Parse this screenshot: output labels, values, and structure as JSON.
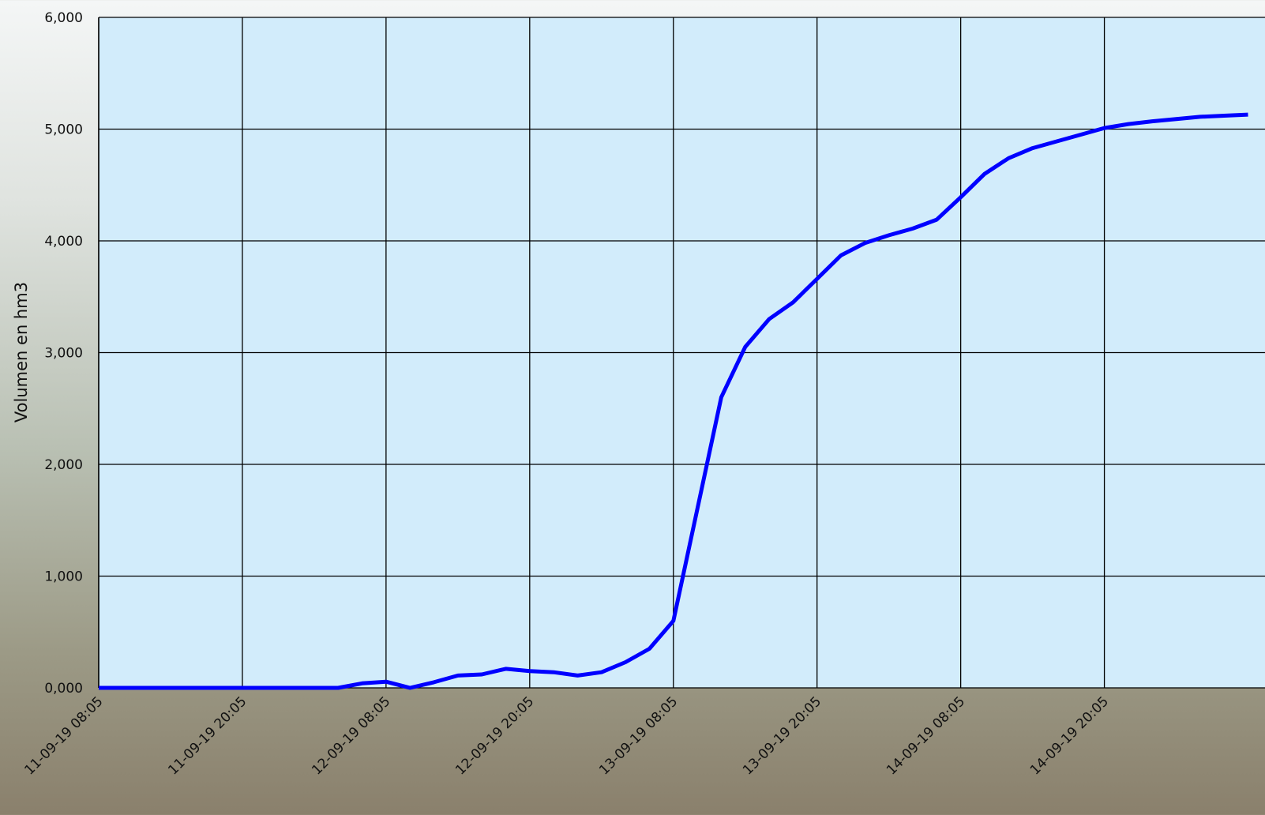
{
  "chart_data": {
    "type": "line",
    "y_label": "Volumen en hm3",
    "x": [
      "2019-09-11T08:05",
      "2019-09-11T10:05",
      "2019-09-11T12:05",
      "2019-09-11T14:05",
      "2019-09-11T16:05",
      "2019-09-11T18:05",
      "2019-09-11T20:05",
      "2019-09-11T22:05",
      "2019-09-12T00:05",
      "2019-09-12T02:05",
      "2019-09-12T04:05",
      "2019-09-12T06:05",
      "2019-09-12T08:05",
      "2019-09-12T10:05",
      "2019-09-12T12:05",
      "2019-09-12T14:05",
      "2019-09-12T16:05",
      "2019-09-12T18:05",
      "2019-09-12T20:05",
      "2019-09-12T22:05",
      "2019-09-13T00:05",
      "2019-09-13T02:05",
      "2019-09-13T04:05",
      "2019-09-13T06:05",
      "2019-09-13T08:05",
      "2019-09-13T10:05",
      "2019-09-13T12:05",
      "2019-09-13T14:05",
      "2019-09-13T16:05",
      "2019-09-13T18:05",
      "2019-09-13T20:05",
      "2019-09-13T22:05",
      "2019-09-14T00:05",
      "2019-09-14T02:05",
      "2019-09-14T04:05",
      "2019-09-14T06:05",
      "2019-09-14T08:05",
      "2019-09-14T10:05",
      "2019-09-14T12:05",
      "2019-09-14T14:05",
      "2019-09-14T16:05",
      "2019-09-14T18:05",
      "2019-09-14T20:05",
      "2019-09-14T22:05",
      "2019-09-15T00:05",
      "2019-09-15T02:05",
      "2019-09-15T04:05",
      "2019-09-15T06:05",
      "2019-09-15T08:05"
    ],
    "series": [
      {
        "color": "#0000ff",
        "values": [
          0,
          0,
          0,
          0,
          0,
          0,
          0,
          0,
          0,
          0,
          0,
          40,
          55,
          0,
          50,
          110,
          120,
          170,
          150,
          140,
          110,
          140,
          230,
          350,
          600,
          1600,
          2600,
          3050,
          3300,
          3450,
          3660,
          3870,
          3980,
          4050,
          4110,
          4190,
          4390,
          4600,
          4740,
          4830,
          4890,
          4950,
          5010,
          5045,
          5070,
          5090,
          5110,
          5120,
          5130
        ]
      }
    ],
    "xlim": [
      "2019-09-11T08:05",
      "2019-09-15T09:30"
    ],
    "xticks": [
      {
        "value": "2019-09-11T08:05",
        "label": "11-09-19 08:05"
      },
      {
        "value": "2019-09-11T20:05",
        "label": "11-09-19 20:05"
      },
      {
        "value": "2019-09-12T08:05",
        "label": "12-09-19 08:05"
      },
      {
        "value": "2019-09-12T20:05",
        "label": "12-09-19 20:05"
      },
      {
        "value": "2019-09-13T08:05",
        "label": "13-09-19 08:05"
      },
      {
        "value": "2019-09-13T20:05",
        "label": "13-09-19 20:05"
      },
      {
        "value": "2019-09-14T08:05",
        "label": "14-09-19 08:05"
      },
      {
        "value": "2019-09-14T20:05",
        "label": "14-09-19 20:05"
      }
    ],
    "ylim": [
      0,
      6000
    ],
    "yticks": [
      {
        "value": 0,
        "label": "0,000"
      },
      {
        "value": 1000,
        "label": "1,000"
      },
      {
        "value": 2000,
        "label": "2,000"
      },
      {
        "value": 3000,
        "label": "3,000"
      },
      {
        "value": 4000,
        "label": "4,000"
      },
      {
        "value": 5000,
        "label": "5,000"
      },
      {
        "value": 6000,
        "label": "6,000"
      }
    ],
    "grid": true,
    "plot_background": "#d2ecfb"
  }
}
